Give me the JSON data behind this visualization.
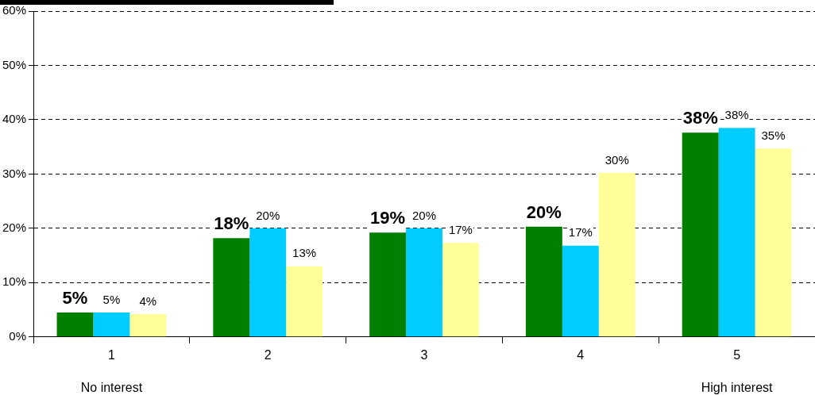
{
  "chart_data": {
    "type": "bar",
    "categories": [
      "1",
      "2",
      "3",
      "4",
      "5"
    ],
    "series": [
      {
        "color": "#007f00",
        "values": [
          4.5,
          18.2,
          19.2,
          20.3,
          37.6
        ],
        "value_labels": [
          "5%",
          "18%",
          "19%",
          "20%",
          "38%"
        ]
      },
      {
        "color": "#00ccff",
        "values": [
          4.5,
          20,
          20,
          16.8,
          38.5
        ],
        "value_labels": [
          "5%",
          "20%",
          "20%",
          "17%",
          "38%"
        ]
      },
      {
        "color": "#ffff99",
        "values": [
          4.2,
          13,
          17.3,
          30.2,
          34.7
        ],
        "value_labels": [
          "4%",
          "13%",
          "17%",
          "30%",
          "35%"
        ]
      }
    ],
    "ylim": [
      0,
      60
    ],
    "yticks": [
      {
        "value": 0,
        "label": "0%"
      },
      {
        "value": 10,
        "label": "10%"
      },
      {
        "value": 20,
        "label": "20%"
      },
      {
        "value": 30,
        "label": "30%"
      },
      {
        "value": 40,
        "label": "40%"
      },
      {
        "value": 50,
        "label": "50%"
      },
      {
        "value": 60,
        "label": "60%"
      }
    ],
    "grid": "y",
    "legend": false,
    "annotations": [
      "No interest",
      "High interest"
    ]
  }
}
